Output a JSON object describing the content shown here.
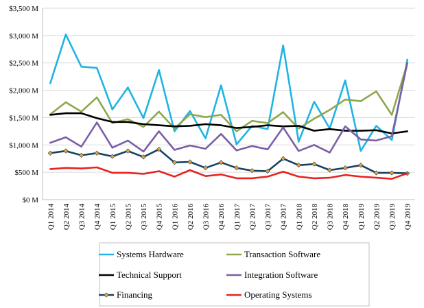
{
  "chart_data": {
    "type": "line",
    "title": "",
    "xlabel": "",
    "ylabel": "",
    "ylim": [
      0,
      3500
    ],
    "y_ticks": [
      0,
      500,
      1000,
      1500,
      2000,
      2500,
      3000,
      3500
    ],
    "y_tick_labels": [
      "$0 M",
      "$500 M",
      "$1,000 M",
      "$1,500 M",
      "$2,000 M",
      "$2,500 M",
      "$3,000 M",
      "$3,500 M"
    ],
    "grid": "horizontal",
    "legend_position": "bottom",
    "categories": [
      "Q1 2014",
      "Q2 2014",
      "Q3 2014",
      "Q4 2014",
      "Q1 2015",
      "Q2 2015",
      "Q3 2015",
      "Q4 2015",
      "Q1 2016",
      "Q2 2016",
      "Q3 2016",
      "Q4 2016",
      "Q1 2017",
      "Q2 2017",
      "Q3 2017",
      "Q4 2017",
      "Q1 2018",
      "Q2 2018",
      "Q3 2018",
      "Q4 2018",
      "Q1 2019",
      "Q2 2019",
      "Q3 2019",
      "Q4 2019"
    ],
    "series": [
      {
        "name": "Systems Hardware",
        "color": "#1fb4e4",
        "marker": false,
        "values": [
          2130,
          3020,
          2430,
          2410,
          1650,
          2050,
          1490,
          2370,
          1250,
          1620,
          1120,
          2090,
          1010,
          1350,
          1290,
          2820,
          1060,
          1790,
          1300,
          2180,
          890,
          1350,
          1090,
          2560
        ]
      },
      {
        "name": "Transaction Software",
        "color": "#8ea64d",
        "marker": false,
        "values": [
          1560,
          1780,
          1610,
          1870,
          1400,
          1470,
          1330,
          1610,
          1300,
          1560,
          1510,
          1550,
          1250,
          1440,
          1400,
          1600,
          1300,
          1480,
          1640,
          1830,
          1800,
          1980,
          1550,
          2490
        ]
      },
      {
        "name": "Technical Support",
        "color": "#000000",
        "marker": false,
        "values": [
          1550,
          1580,
          1580,
          1490,
          1420,
          1420,
          1380,
          1360,
          1340,
          1350,
          1380,
          1360,
          1310,
          1330,
          1360,
          1340,
          1350,
          1260,
          1290,
          1260,
          1260,
          1270,
          1210,
          1250
        ]
      },
      {
        "name": "Integration Software",
        "color": "#7b5fa6",
        "marker": false,
        "values": [
          1040,
          1140,
          970,
          1410,
          950,
          1080,
          880,
          1250,
          910,
          990,
          930,
          1200,
          900,
          980,
          920,
          1320,
          890,
          1000,
          860,
          1340,
          1100,
          1080,
          1160,
          2500
        ]
      },
      {
        "name": "Financing",
        "color": "#17425f",
        "marker": true,
        "marker_color": "#f0a030",
        "values": [
          850,
          890,
          810,
          850,
          790,
          890,
          780,
          920,
          680,
          690,
          580,
          680,
          580,
          530,
          520,
          750,
          630,
          650,
          540,
          580,
          630,
          490,
          490,
          480
        ]
      },
      {
        "name": "Operating Systems",
        "color": "#e8231f",
        "marker": false,
        "values": [
          560,
          580,
          570,
          590,
          490,
          490,
          470,
          520,
          420,
          540,
          430,
          460,
          390,
          390,
          420,
          510,
          420,
          390,
          400,
          450,
          420,
          400,
          380,
          480
        ]
      }
    ]
  }
}
